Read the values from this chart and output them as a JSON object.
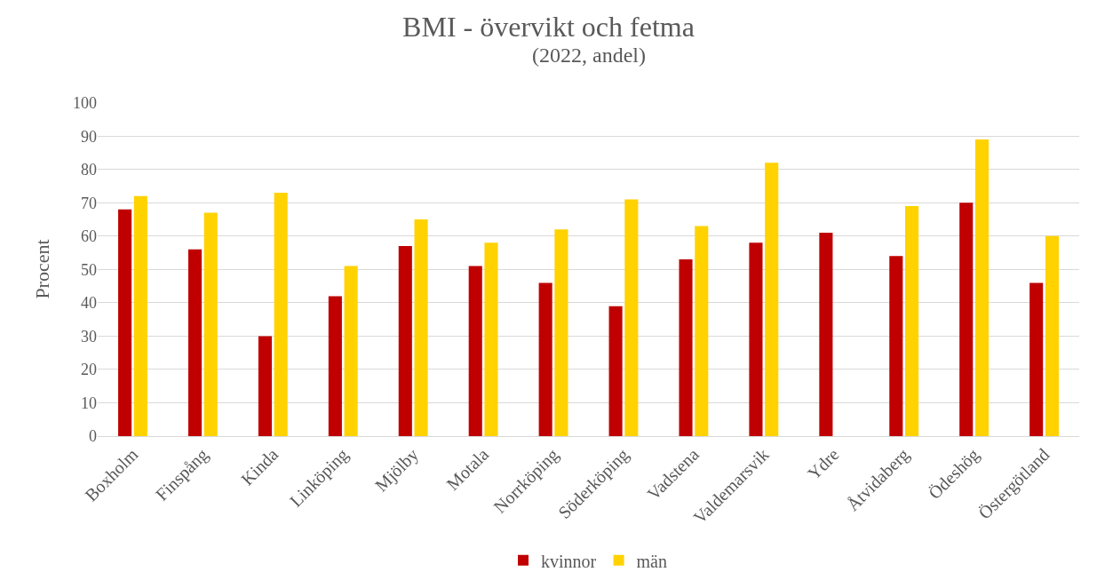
{
  "chart_data": {
    "type": "bar",
    "title": "BMI - övervikt och fetma",
    "subtitle": "(2022, andel)",
    "ylabel": "Procent",
    "categories": [
      "Boxholm",
      "Finspång",
      "Kinda",
      "Linköping",
      "Mjölby",
      "Motala",
      "Norrköping",
      "Söderköping",
      "Vadstena",
      "Valdemarsvik",
      "Ydre",
      "Åtvidaberg",
      "Ödeshög",
      "Östergötland"
    ],
    "series": [
      {
        "name": "kvinnor",
        "color": "#c00000",
        "values": [
          68,
          56,
          30,
          42,
          57,
          51,
          46,
          39,
          53,
          58,
          61,
          54,
          70,
          46
        ]
      },
      {
        "name": "män",
        "color": "#ffd200",
        "values": [
          72,
          67,
          73,
          51,
          65,
          58,
          62,
          71,
          63,
          82,
          null,
          69,
          89,
          60
        ]
      }
    ],
    "ylim": [
      0,
      100
    ],
    "yticks": [
      0,
      10,
      20,
      30,
      40,
      50,
      60,
      70,
      80,
      90,
      100
    ],
    "grid": "y",
    "legend": "bottom"
  }
}
